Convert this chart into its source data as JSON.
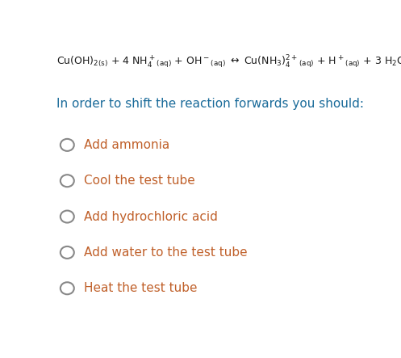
{
  "bg_color": "#ffffff",
  "equation_color": "#1a1a1a",
  "question_color": "#1a6b9a",
  "option_color": "#c0602a",
  "circle_color": "#888888",
  "question_text": "In order to shift the reaction forwards you should:",
  "options": [
    "Add ammonia",
    "Cool the test tube",
    "Add hydrochloric acid",
    "Add water to the test tube",
    "Heat the test tube"
  ],
  "fig_width": 4.97,
  "fig_height": 4.43,
  "dpi": 100
}
